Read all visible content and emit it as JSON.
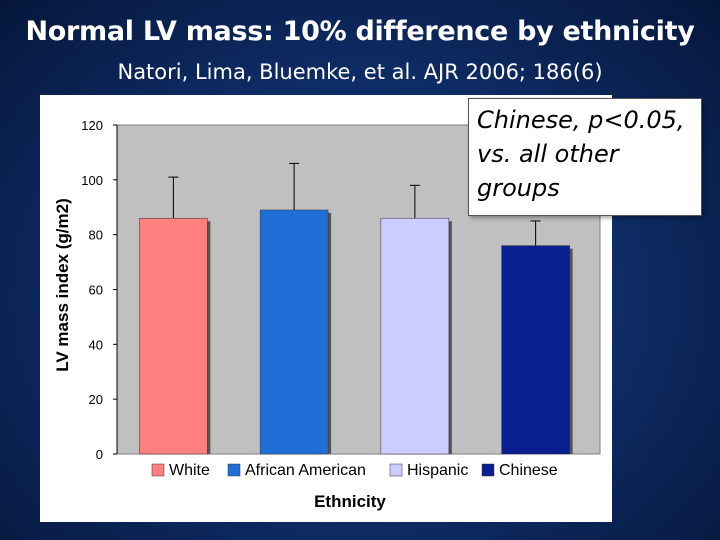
{
  "slide": {
    "title": "Normal LV mass:  10% difference by ethnicity",
    "subtitle": "Natori, Lima, Bluemke, et al. AJR 2006; 186(6)"
  },
  "annotation": {
    "text": "Chinese, p<0.05, vs. all other groups"
  },
  "chart_data": {
    "type": "bar",
    "categories": [
      "White",
      "African American",
      "Hispanic",
      "Chinese"
    ],
    "values": [
      86,
      89,
      86,
      76
    ],
    "error_upper": [
      101,
      106,
      98,
      85
    ],
    "colors": [
      "#ff7f7f",
      "#1f6fd6",
      "#ccccff",
      "#0a1f8f"
    ],
    "xlabel": "Ethnicity",
    "ylabel": "LV mass index (g/m2)",
    "ylim": [
      0,
      120
    ],
    "yticks": [
      0,
      20,
      40,
      60,
      80,
      100,
      120
    ],
    "grid": false,
    "legend": "bottom",
    "plot_background": "#c0c0c0"
  }
}
